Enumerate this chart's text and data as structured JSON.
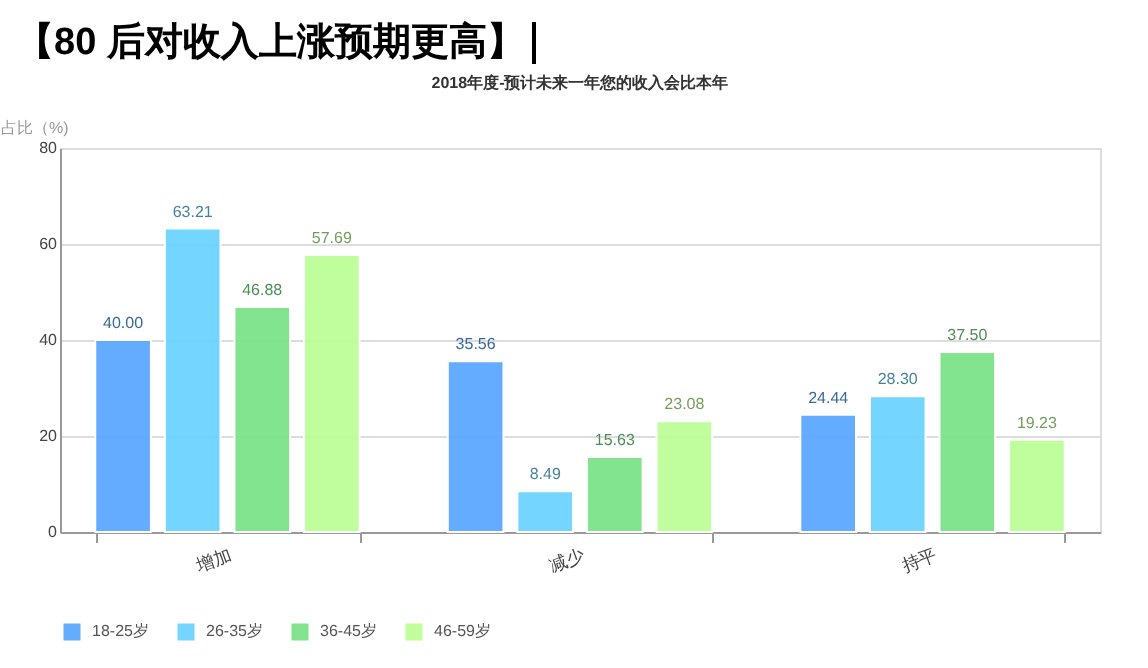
{
  "chart_data": {
    "type": "bar",
    "title": "【80 后对收入上涨预期更高】",
    "subtitle": "2018年度-预计未来一年您的收入会比本年",
    "ylabel": "占比（%)",
    "categories": [
      "增加",
      "减少",
      "持平"
    ],
    "series": [
      {
        "name": "18-25岁",
        "color": "#5ba8ff",
        "values": [
          40.0,
          35.56,
          24.44
        ],
        "value_labels": [
          "40.00",
          "35.56",
          "24.44"
        ]
      },
      {
        "name": "26-35岁",
        "color": "#6dd4ff",
        "values": [
          63.21,
          8.49,
          28.3
        ],
        "value_labels": [
          "63.21",
          "8.49",
          "28.30"
        ]
      },
      {
        "name": "36-45岁",
        "color": "#7de38a",
        "values": [
          46.88,
          15.63,
          37.5
        ],
        "value_labels": [
          "46.88",
          "15.63",
          "37.50"
        ]
      },
      {
        "name": "46-59岁",
        "color": "#bdfd98",
        "values": [
          57.69,
          23.08,
          19.23
        ],
        "value_labels": [
          "57.69",
          "23.08",
          "19.23"
        ]
      }
    ],
    "ylim": [
      0,
      80
    ],
    "yticks": [
      0,
      20,
      40,
      60,
      80
    ],
    "grid": "y",
    "legend": "bottom"
  }
}
